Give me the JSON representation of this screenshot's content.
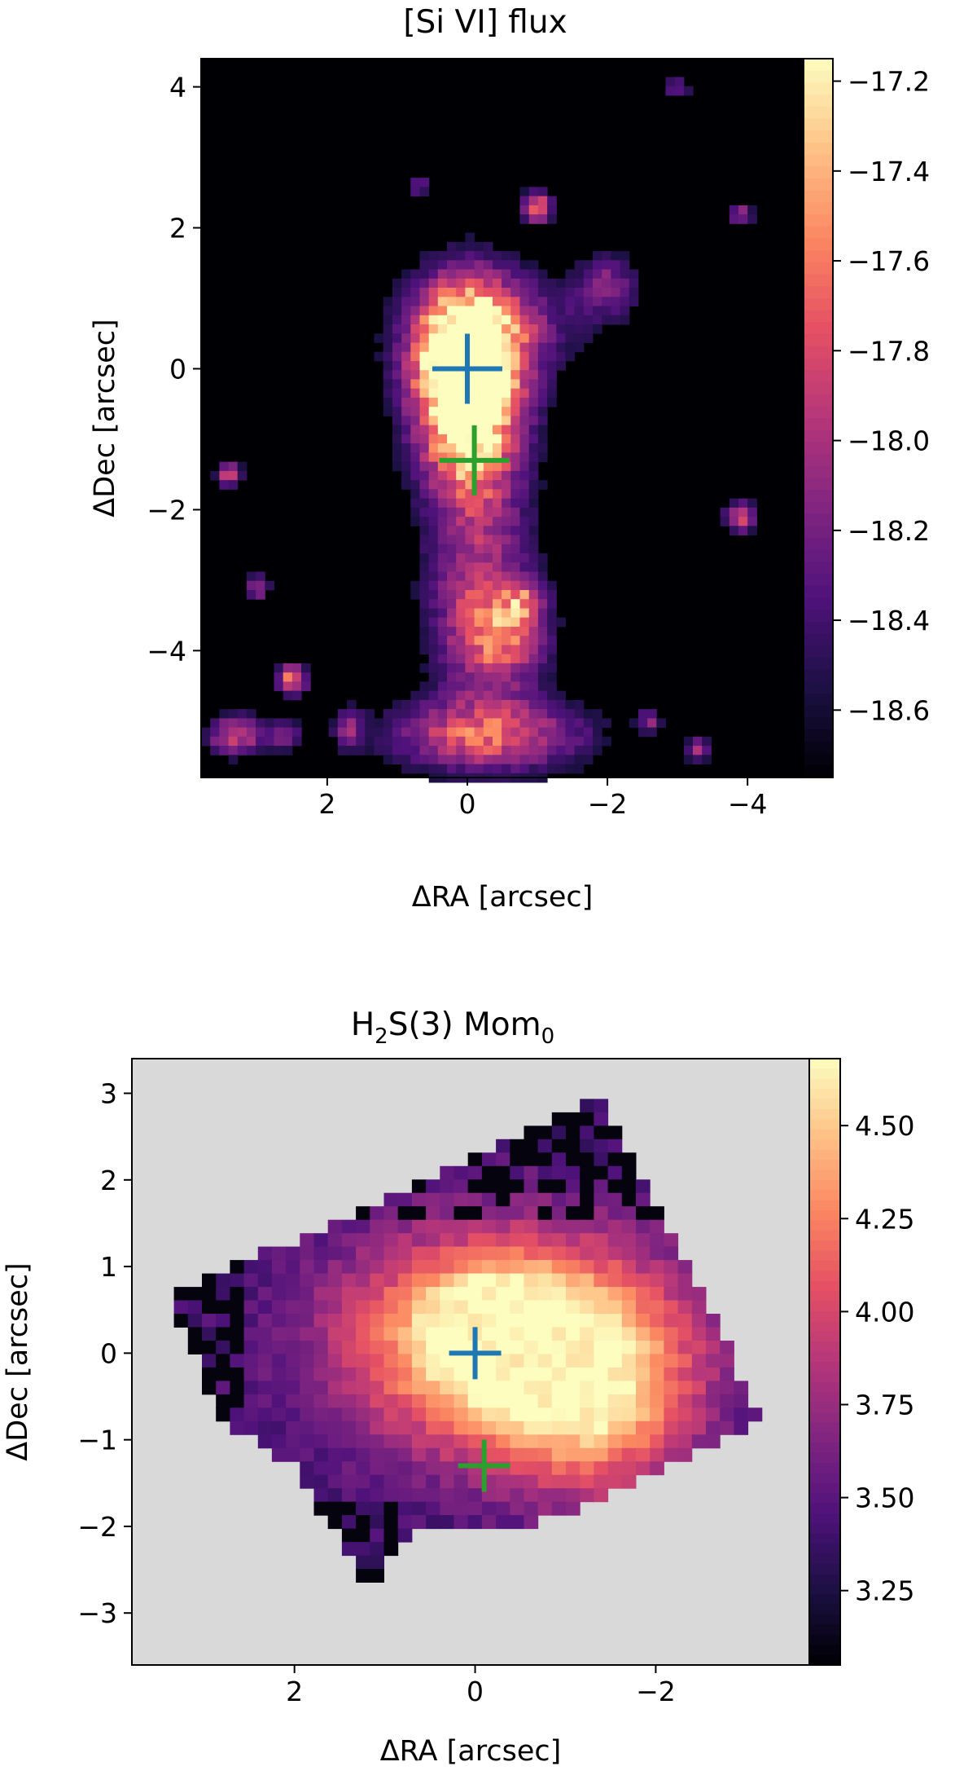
{
  "colormap": {
    "name": "magma",
    "stops": [
      "#000004",
      "#1c1044",
      "#4f127b",
      "#812581",
      "#b5367a",
      "#e55064",
      "#fb8761",
      "#fec287",
      "#fcfdbf"
    ]
  },
  "markers": [
    {
      "name": "blue-cross",
      "color": "#1f77b4",
      "x": 0.0,
      "y": 0.0
    },
    {
      "name": "green-cross",
      "color": "#2ca02c",
      "x": -0.1,
      "y": -1.3
    }
  ],
  "chart_data": [
    {
      "type": "heatmap",
      "title": "[Si VI] flux",
      "xlabel": "ΔRA [arcsec]",
      "ylabel": "ΔDec [arcsec]",
      "x_inverted": true,
      "xlim": [
        3.8,
        -4.8
      ],
      "ylim": [
        -5.8,
        4.4
      ],
      "xticks": [
        2,
        0,
        -2,
        -4
      ],
      "xtick_labels": [
        "2",
        "0",
        "−2",
        "−4"
      ],
      "yticks": [
        4,
        2,
        0,
        -2,
        -4
      ],
      "ytick_labels": [
        "4",
        "2",
        "0",
        "−2",
        "−4"
      ],
      "colorbar": {
        "range": [
          -18.75,
          -17.15
        ],
        "ticks": [
          -17.2,
          -17.4,
          -17.6,
          -17.8,
          -18.0,
          -18.2,
          -18.4,
          -18.6
        ],
        "tick_labels": [
          "−17.2",
          "−17.4",
          "−17.6",
          "−17.8",
          "−18.0",
          "−18.2",
          "−18.4",
          "−18.6"
        ]
      },
      "background": "#000004",
      "grid": false,
      "emission_components": [
        {
          "x": 0.0,
          "y": 0.15,
          "sx": 0.55,
          "sy": 0.75,
          "amp": 1.45
        },
        {
          "x": 0.0,
          "y": -1.0,
          "sx": 0.45,
          "sy": 0.6,
          "amp": 0.55
        },
        {
          "x": -0.15,
          "y": -2.7,
          "sx": 0.55,
          "sy": 1.4,
          "amp": 0.45
        },
        {
          "x": -0.5,
          "y": -3.8,
          "sx": 0.45,
          "sy": 0.5,
          "amp": 0.5
        },
        {
          "x": -0.8,
          "y": -3.3,
          "sx": 0.2,
          "sy": 0.2,
          "amp": 0.35
        },
        {
          "x": -0.3,
          "y": -5.2,
          "sx": 1.0,
          "sy": 0.35,
          "amp": 0.6
        },
        {
          "x": -0.9,
          "y": 0.7,
          "sx": 0.9,
          "sy": 0.45,
          "amp": 0.2
        },
        {
          "x": -2.0,
          "y": 1.2,
          "sx": 0.3,
          "sy": 0.3,
          "amp": 0.35
        },
        {
          "x": -1.0,
          "y": 2.3,
          "sx": 0.15,
          "sy": 0.15,
          "amp": 0.7
        },
        {
          "x": -3.9,
          "y": 2.2,
          "sx": 0.12,
          "sy": 0.12,
          "amp": 0.45
        },
        {
          "x": -3.9,
          "y": -2.1,
          "sx": 0.15,
          "sy": 0.15,
          "amp": 0.6
        },
        {
          "x": 3.4,
          "y": -1.5,
          "sx": 0.12,
          "sy": 0.12,
          "amp": 0.55
        },
        {
          "x": 3.0,
          "y": -3.1,
          "sx": 0.12,
          "sy": 0.12,
          "amp": 0.45
        },
        {
          "x": 2.5,
          "y": -4.4,
          "sx": 0.15,
          "sy": 0.15,
          "amp": 0.7
        },
        {
          "x": 3.3,
          "y": -5.2,
          "sx": 0.3,
          "sy": 0.2,
          "amp": 0.55
        },
        {
          "x": 2.6,
          "y": -5.2,
          "sx": 0.15,
          "sy": 0.15,
          "amp": 0.35
        },
        {
          "x": 1.7,
          "y": -5.1,
          "sx": 0.15,
          "sy": 0.2,
          "amp": 0.35
        },
        {
          "x": 0.7,
          "y": 2.6,
          "sx": 0.12,
          "sy": 0.12,
          "amp": 0.3
        },
        {
          "x": -3.0,
          "y": 4.0,
          "sx": 0.12,
          "sy": 0.12,
          "amp": 0.35
        },
        {
          "x": -3.3,
          "y": -5.4,
          "sx": 0.12,
          "sy": 0.12,
          "amp": 0.45
        },
        {
          "x": -2.6,
          "y": -5.0,
          "sx": 0.12,
          "sy": 0.12,
          "amp": 0.35
        }
      ]
    },
    {
      "type": "heatmap",
      "title": "H2S(3) Mom0",
      "title_parts": {
        "main1": "H",
        "sub1": "2",
        "main2": "S(3) Mom",
        "sub2": "0"
      },
      "xlabel": "ΔRA [arcsec]",
      "ylabel": "ΔDec [arcsec]",
      "x_inverted": true,
      "xlim": [
        3.8,
        -3.7
      ],
      "ylim": [
        -3.6,
        3.4
      ],
      "xticks": [
        2,
        0,
        -2
      ],
      "xtick_labels": [
        "2",
        "0",
        "−2"
      ],
      "yticks": [
        3,
        2,
        1,
        0,
        -1,
        -2,
        -3
      ],
      "ytick_labels": [
        "3",
        "2",
        "1",
        "0",
        "−1",
        "−2",
        "−3"
      ],
      "colorbar": {
        "range": [
          3.05,
          4.68
        ],
        "ticks": [
          4.5,
          4.25,
          4.0,
          3.75,
          3.5,
          3.25
        ],
        "tick_labels": [
          "4.50",
          "4.25",
          "4.00",
          "3.75",
          "3.50",
          "3.25"
        ]
      },
      "background": "#d9d9d9",
      "grid": false,
      "valid_region": [
        [
          3.4,
          0.7
        ],
        [
          1.3,
          1.6
        ],
        [
          -1.4,
          3.0
        ],
        [
          -3.2,
          -0.8
        ],
        [
          -1.2,
          -1.8
        ],
        [
          -0.5,
          -2.0
        ],
        [
          0.6,
          -2.0
        ],
        [
          1.2,
          -2.7
        ],
        [
          2.0,
          -1.3
        ],
        [
          2.8,
          -0.8
        ]
      ],
      "emission_components": [
        {
          "x": -0.35,
          "y": 0.15,
          "sx": 1.3,
          "sy": 0.9,
          "amp": 1.05
        },
        {
          "x": -0.2,
          "y": 0.25,
          "sx": 0.45,
          "sy": 0.4,
          "amp": 0.6
        },
        {
          "x": -1.3,
          "y": -0.6,
          "sx": 0.8,
          "sy": 0.8,
          "amp": 0.55
        }
      ]
    }
  ]
}
